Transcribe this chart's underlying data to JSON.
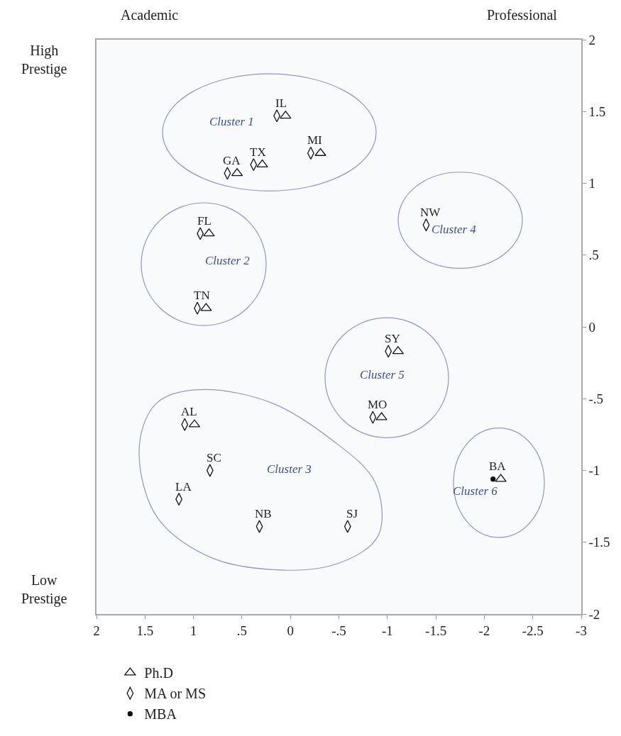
{
  "chart_data": {
    "type": "scatter",
    "xlim": [
      2,
      -3
    ],
    "xticks": [
      2,
      1.5,
      1,
      {
        "value": 0.5,
        "label": ".5"
      },
      0,
      {
        "value": -0.5,
        "label": "-.5"
      },
      -1,
      -1.5,
      -2,
      -2.5,
      -3
    ],
    "ylim": [
      -2,
      2
    ],
    "yticks": [
      -2,
      -1.5,
      -1,
      {
        "value": -0.5,
        "label": "-.5"
      },
      0,
      {
        "value": 0.5,
        "label": ".5"
      },
      1,
      1.5,
      2
    ],
    "grid": false,
    "legend": "bottom left",
    "series": [
      {
        "name": "Ph.D",
        "color": "#111111",
        "marker": "triangle",
        "x": [
          0.05,
          -0.31,
          0.29,
          0.55,
          0.84,
          0.87,
          -1.11,
          -0.94,
          0.99,
          -2.17
        ],
        "values": [
          1.47,
          1.21,
          1.13,
          1.07,
          0.65,
          0.13,
          -0.17,
          -0.63,
          -0.68,
          -1.06
        ]
      },
      {
        "name": "MA or MS",
        "color": "#111111",
        "marker": "diamond",
        "x": [
          0.14,
          -0.21,
          0.38,
          0.65,
          0.93,
          0.96,
          -1.4,
          -1.01,
          -0.85,
          1.09,
          0.83,
          1.15,
          0.32,
          -0.59
        ],
        "values": [
          1.47,
          1.21,
          1.13,
          1.07,
          0.65,
          0.13,
          0.71,
          -0.17,
          -0.63,
          -0.68,
          -1.0,
          -1.2,
          -1.39,
          -1.39
        ]
      },
      {
        "name": "MBA",
        "color": "#111111",
        "marker": "circle",
        "x": [
          -2.09
        ],
        "values": [
          -1.06
        ]
      }
    ],
    "annotations": [
      "Academic",
      "Professional",
      "High Prestige",
      "Low Prestige",
      "Cluster 1",
      "Cluster 2",
      "Cluster 3",
      "Cluster 4",
      "Cluster 5",
      "Cluster 6",
      {
        "text": "IL",
        "x": 0.14,
        "y": 1.47
      },
      {
        "text": "MI",
        "x": -0.21,
        "y": 1.21
      },
      {
        "text": "TX",
        "x": 0.38,
        "y": 1.13
      },
      {
        "text": "GA",
        "x": 0.65,
        "y": 1.07
      },
      {
        "text": "FL",
        "x": 0.93,
        "y": 0.65
      },
      {
        "text": "TN",
        "x": 0.96,
        "y": 0.13
      },
      {
        "text": "NW",
        "x": -1.4,
        "y": 0.71
      },
      {
        "text": "SY",
        "x": -1.01,
        "y": -0.17
      },
      {
        "text": "MO",
        "x": -0.85,
        "y": -0.63
      },
      {
        "text": "AL",
        "x": 1.09,
        "y": -0.68
      },
      {
        "text": "SC",
        "x": 0.83,
        "y": -1.0
      },
      {
        "text": "LA",
        "x": 1.15,
        "y": -1.2
      },
      {
        "text": "NB",
        "x": 0.32,
        "y": -1.39
      },
      {
        "text": "SJ",
        "x": -0.59,
        "y": -1.39
      },
      {
        "text": "BA",
        "x": -2.09,
        "y": -1.06
      }
    ]
  }
}
